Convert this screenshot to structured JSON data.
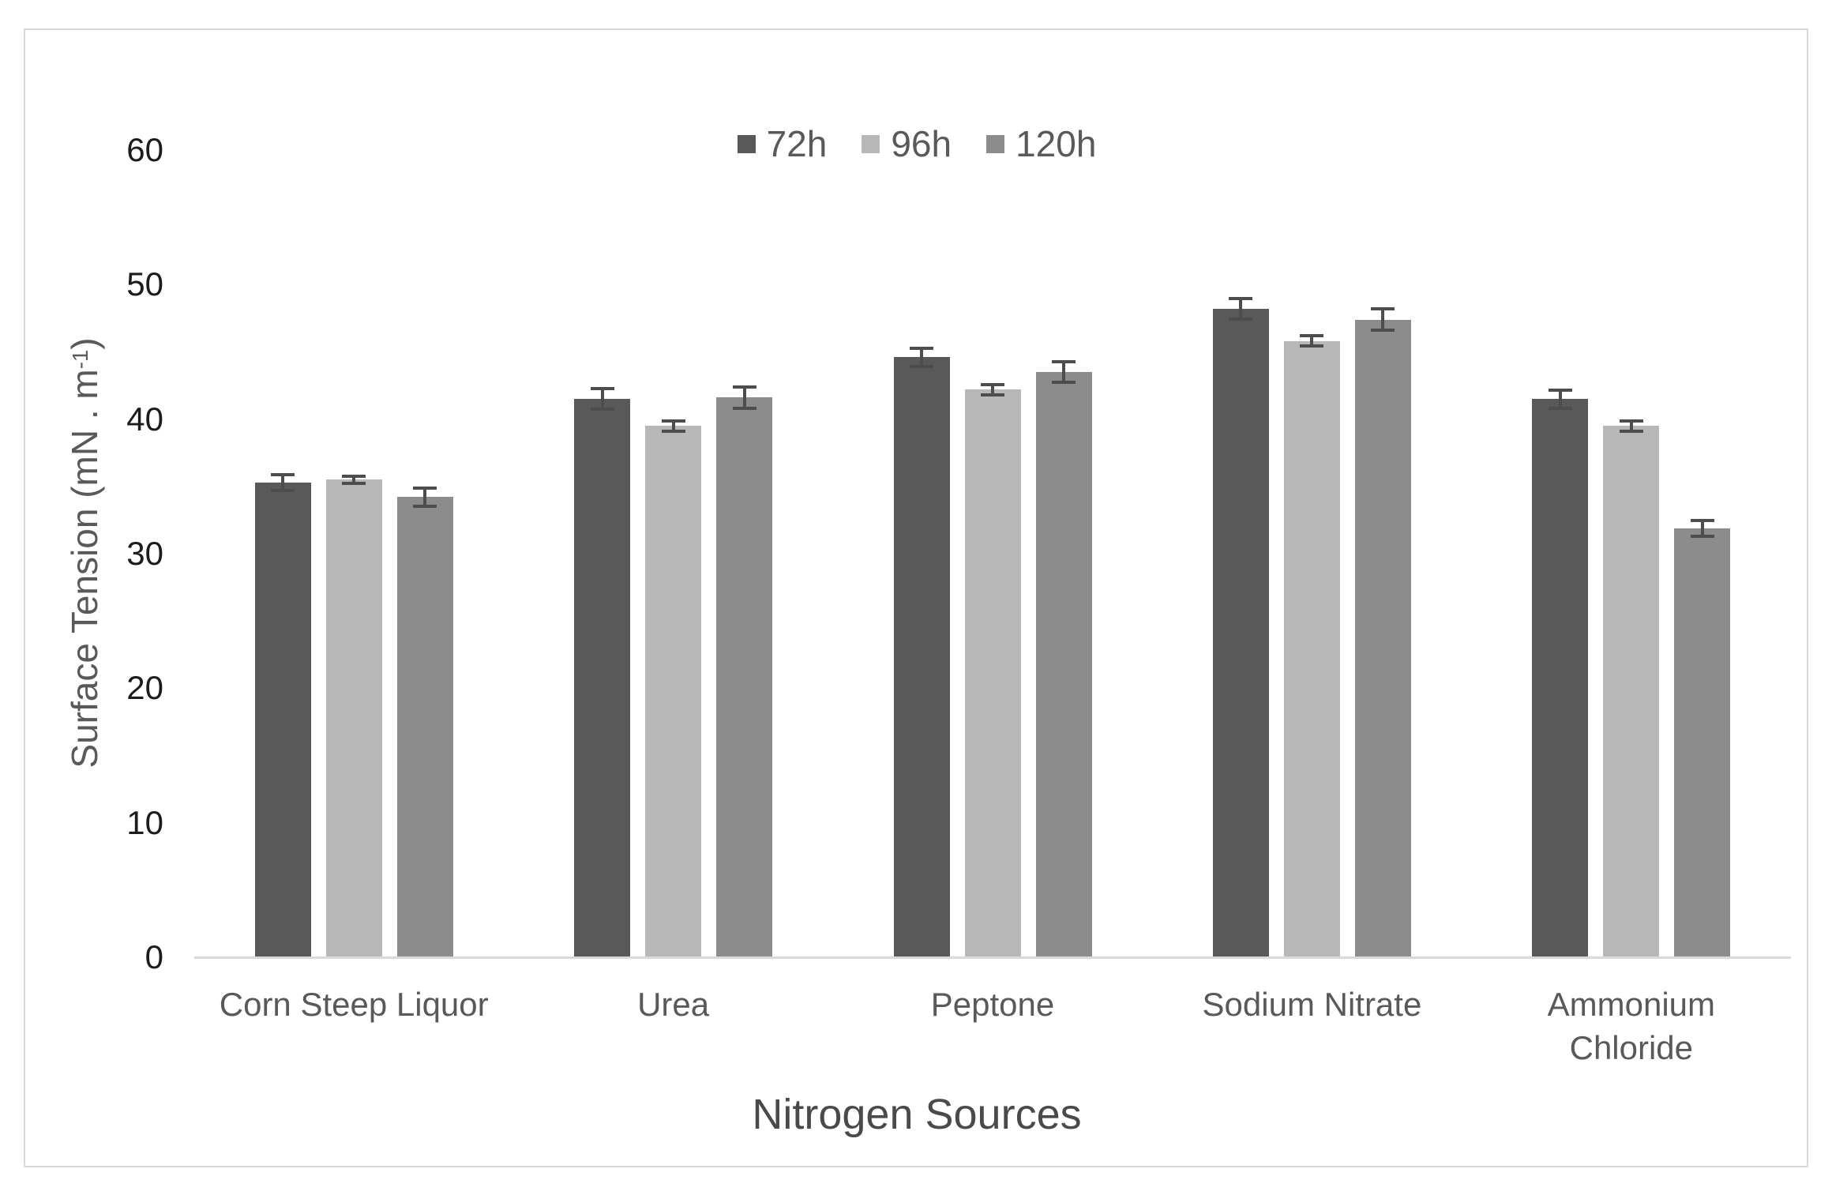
{
  "chart_data": {
    "type": "bar",
    "title": "",
    "xlabel": "Nitrogen Sources",
    "ylabel": {
      "prefix": "Surface Tension (mN . m",
      "superscript": "-1",
      "suffix": ")"
    },
    "categories": [
      "Corn Steep Liquor",
      "Urea",
      "Peptone",
      "Sodium Nitrate",
      "Ammonium\nChloride"
    ],
    "series": [
      {
        "name": "72h",
        "color": "#595959",
        "values": [
          35.3,
          41.5,
          44.6,
          48.2,
          41.5
        ],
        "errors": [
          0.7,
          0.9,
          0.8,
          0.9,
          0.8
        ]
      },
      {
        "name": "96h",
        "color": "#b8b8b8",
        "values": [
          35.5,
          39.5,
          42.2,
          45.8,
          39.5
        ],
        "errors": [
          0.4,
          0.5,
          0.5,
          0.5,
          0.5
        ]
      },
      {
        "name": "120h",
        "color": "#8c8c8c",
        "values": [
          34.2,
          41.6,
          43.5,
          47.4,
          31.9
        ],
        "errors": [
          0.8,
          0.9,
          0.9,
          0.9,
          0.7
        ]
      }
    ],
    "ylim": [
      0,
      60
    ],
    "yticks": [
      0,
      10,
      20,
      30,
      40,
      50,
      60
    ],
    "grid": false,
    "legend_position": "top-center",
    "error_bar_color": "#4d4d4d",
    "axis_line_color": "#d9d9d9",
    "frame_border_color": "#d9d9d9",
    "background_color": "#ffffff"
  }
}
